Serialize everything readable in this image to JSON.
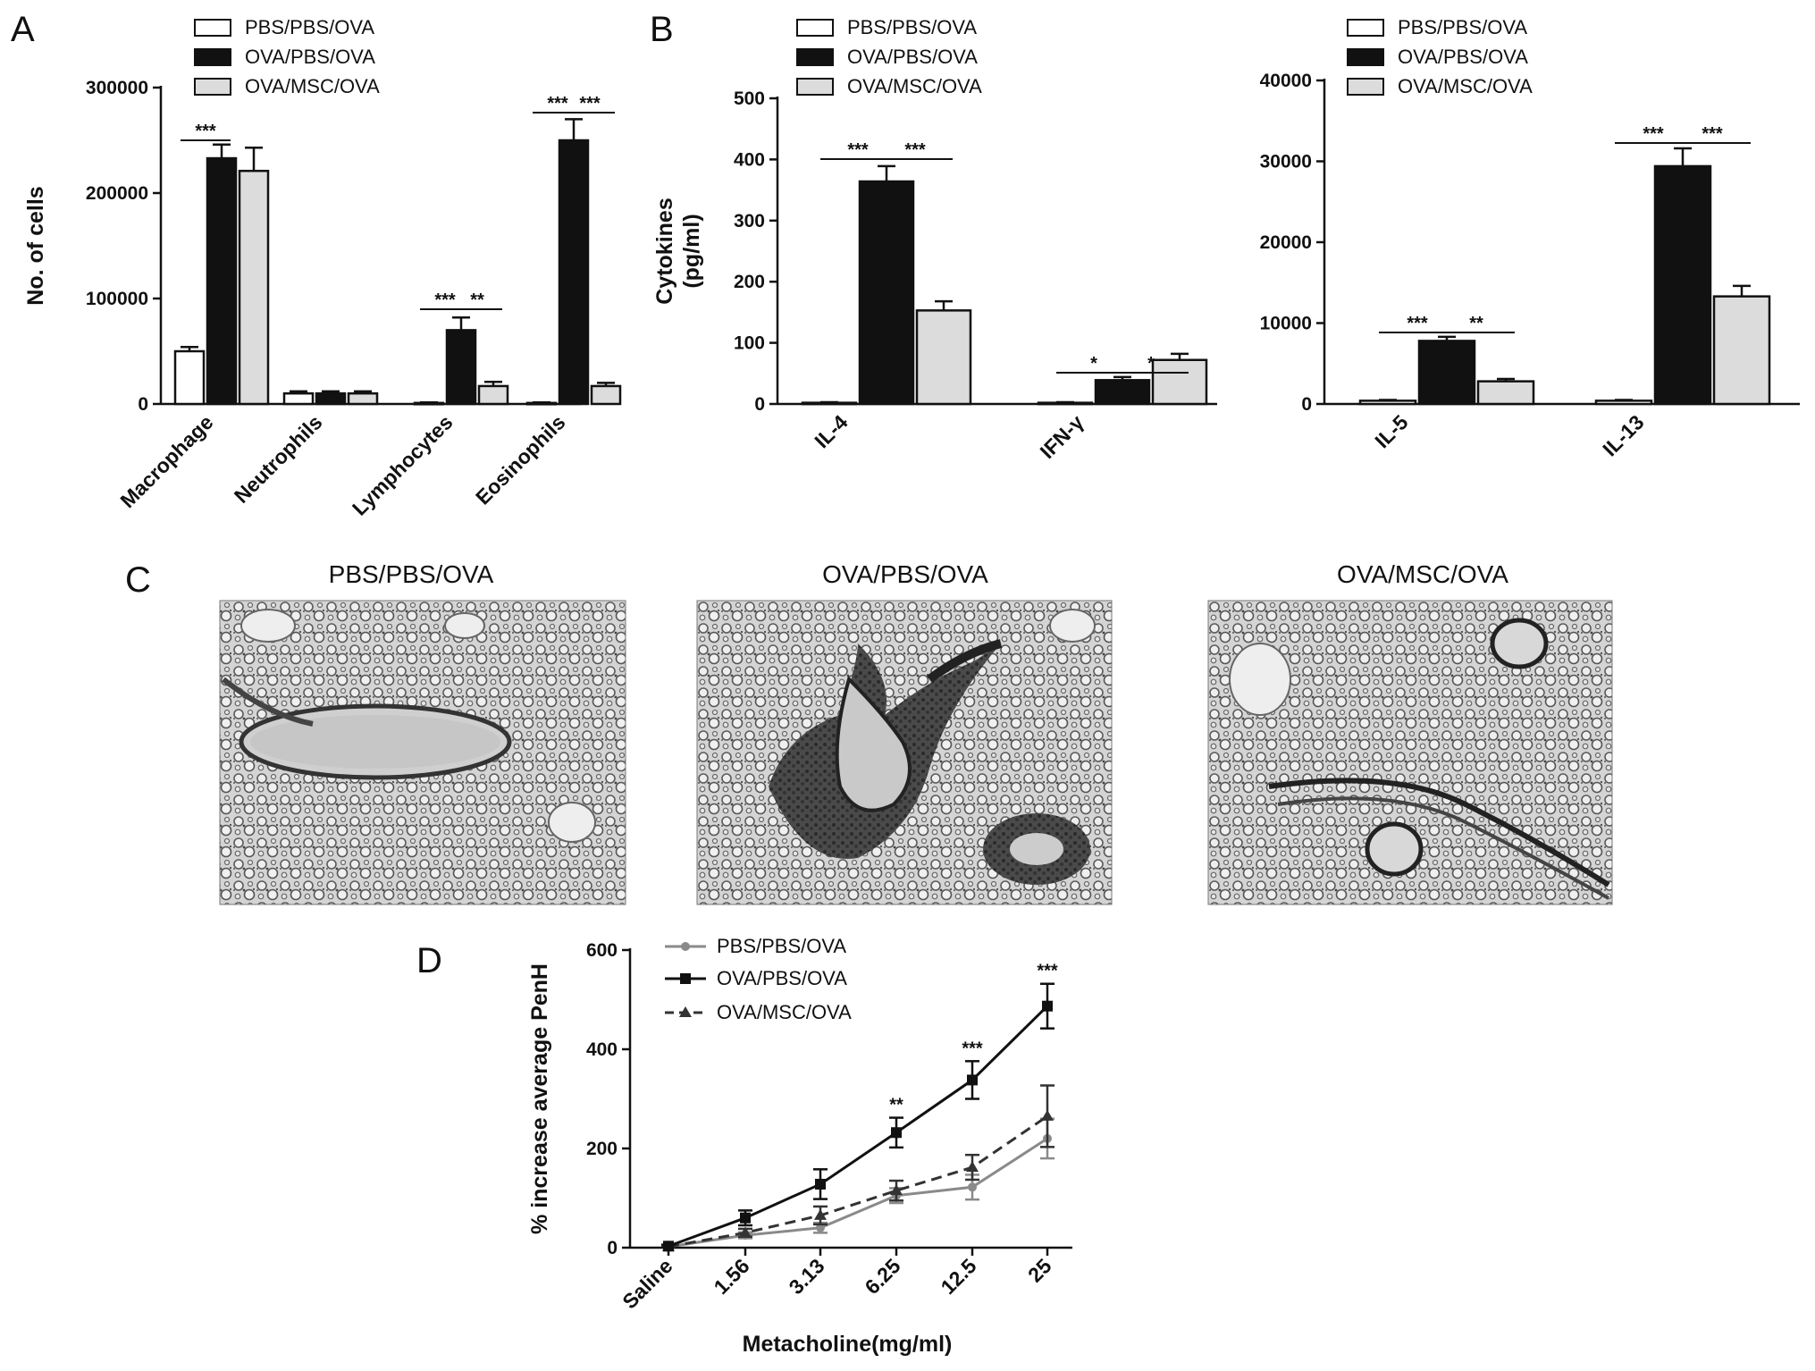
{
  "figure": {
    "panel_letters": [
      "A",
      "B",
      "C",
      "D"
    ],
    "colors": {
      "PBS/PBS/OVA": "#ffffff",
      "OVA/PBS/OVA": "#111111",
      "OVA/MSC/OVA": "#dcdcdc",
      "line_pbs": "#8a8a8a",
      "line_ova": "#111111",
      "line_msc": "#333333"
    }
  },
  "chart_data": [
    {
      "id": "A",
      "type": "bar",
      "ylabel": "No. of cells",
      "ylim": [
        0,
        300000
      ],
      "yticks": [
        "0",
        "100000",
        "200000",
        "300000"
      ],
      "categories": [
        "Macrophage",
        "Neutrophils",
        "Lymphocytes",
        "Eosinophils"
      ],
      "legend": [
        "PBS/PBS/OVA",
        "OVA/PBS/OVA",
        "OVA/MSC/OVA"
      ],
      "series": [
        {
          "name": "PBS/PBS/OVA",
          "values": [
            50000,
            10000,
            1000,
            1000
          ],
          "errors": [
            4000,
            2000,
            500,
            500
          ]
        },
        {
          "name": "OVA/PBS/OVA",
          "values": [
            233000,
            10000,
            70000,
            250000
          ],
          "errors": [
            13000,
            2000,
            12000,
            20000
          ]
        },
        {
          "name": "OVA/MSC/OVA",
          "values": [
            221000,
            10000,
            17000,
            17000
          ],
          "errors": [
            22000,
            2000,
            4000,
            3000
          ]
        }
      ],
      "significance": [
        {
          "category": 0,
          "from": 0,
          "to": 1,
          "label": "***"
        },
        {
          "category": 2,
          "from": 0,
          "to": 1,
          "label": "***"
        },
        {
          "category": 2,
          "from": 1,
          "to": 2,
          "label": "**"
        },
        {
          "category": 3,
          "from": 0,
          "to": 1,
          "label": "***"
        },
        {
          "category": 3,
          "from": 1,
          "to": 2,
          "label": "***"
        }
      ]
    },
    {
      "id": "B1",
      "type": "bar",
      "ylabel": "Cytokines (pg/ml)",
      "ylabel_lines": [
        "Cytokines",
        "(pg/ml)"
      ],
      "ylim": [
        0,
        500
      ],
      "yticks": [
        "0",
        "100",
        "200",
        "300",
        "400",
        "500"
      ],
      "categories": [
        "IL-4",
        "IFN-γ"
      ],
      "legend": [
        "PBS/PBS/OVA",
        "OVA/PBS/OVA",
        "OVA/MSC/OVA"
      ],
      "series": [
        {
          "name": "PBS/PBS/OVA",
          "values": [
            2,
            2
          ],
          "errors": [
            1,
            1
          ]
        },
        {
          "name": "OVA/PBS/OVA",
          "values": [
            364,
            39
          ],
          "errors": [
            25,
            5
          ]
        },
        {
          "name": "OVA/MSC/OVA",
          "values": [
            153,
            72
          ],
          "errors": [
            15,
            10
          ]
        }
      ],
      "significance": [
        {
          "category": 0,
          "from": 0,
          "to": 1,
          "label": "***"
        },
        {
          "category": 0,
          "from": 1,
          "to": 2,
          "label": "***"
        },
        {
          "category": 1,
          "from": 0,
          "to": 1,
          "label": "*"
        },
        {
          "category": 1,
          "from": 1,
          "to": 2,
          "label": "*"
        }
      ]
    },
    {
      "id": "B2",
      "type": "bar",
      "ylabel": "",
      "ylim": [
        0,
        40000
      ],
      "yticks": [
        "0",
        "10000",
        "20000",
        "30000",
        "40000"
      ],
      "categories": [
        "IL-5",
        "IL-13"
      ],
      "legend": [
        "PBS/PBS/OVA",
        "OVA/PBS/OVA",
        "OVA/MSC/OVA"
      ],
      "series": [
        {
          "name": "PBS/PBS/OVA",
          "values": [
            400,
            400
          ],
          "errors": [
            100,
            100
          ]
        },
        {
          "name": "OVA/PBS/OVA",
          "values": [
            7800,
            29400
          ],
          "errors": [
            500,
            2200
          ]
        },
        {
          "name": "OVA/MSC/OVA",
          "values": [
            2800,
            13300
          ],
          "errors": [
            300,
            1300
          ]
        }
      ],
      "significance": [
        {
          "category": 0,
          "from": 0,
          "to": 1,
          "label": "***"
        },
        {
          "category": 0,
          "from": 1,
          "to": 2,
          "label": "**"
        },
        {
          "category": 1,
          "from": 0,
          "to": 1,
          "label": "***"
        },
        {
          "category": 1,
          "from": 1,
          "to": 2,
          "label": "***"
        }
      ]
    },
    {
      "id": "D",
      "type": "line",
      "xlabel": "Metacholine(mg/ml)",
      "ylabel": "% increase average PenH",
      "ylim": [
        0,
        600
      ],
      "yticks": [
        "0",
        "200",
        "400",
        "600"
      ],
      "x": [
        "Saline",
        "1.56",
        "3.13",
        "6.25",
        "12.5",
        "25"
      ],
      "legend": [
        "PBS/PBS/OVA",
        "OVA/PBS/OVA",
        "OVA/MSC/OVA"
      ],
      "series": [
        {
          "name": "PBS/PBS/OVA",
          "values": [
            2,
            25,
            40,
            105,
            122,
            220
          ],
          "errors": [
            2,
            6,
            10,
            15,
            25,
            40
          ]
        },
        {
          "name": "OVA/PBS/OVA",
          "values": [
            3,
            60,
            128,
            232,
            338,
            487
          ],
          "errors": [
            3,
            15,
            30,
            30,
            38,
            45
          ]
        },
        {
          "name": "OVA/MSC/OVA",
          "values": [
            2,
            30,
            65,
            115,
            162,
            265
          ],
          "errors": [
            2,
            8,
            18,
            20,
            25,
            62
          ]
        }
      ],
      "significance": [
        {
          "index": 3,
          "label": "**"
        },
        {
          "index": 4,
          "label": "***"
        },
        {
          "index": 5,
          "label": "***"
        }
      ]
    }
  ],
  "micrographs": {
    "titles": [
      "PBS/PBS/OVA",
      "OVA/PBS/OVA",
      "OVA/MSC/OVA"
    ]
  }
}
